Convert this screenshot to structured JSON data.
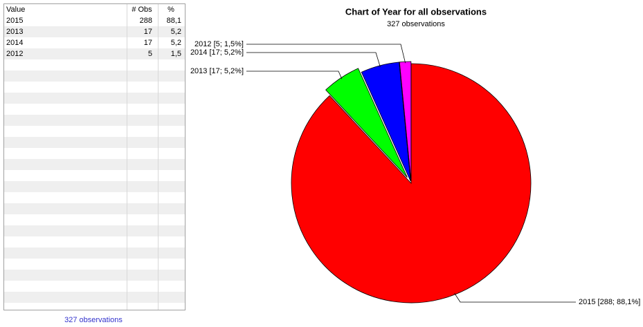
{
  "table": {
    "columns": [
      "Value",
      "# Obs",
      "%"
    ],
    "rows": [
      [
        "2015",
        "288",
        "88,1"
      ],
      [
        "2013",
        "17",
        "5,2"
      ],
      [
        "2014",
        "17",
        "5,2"
      ],
      [
        "2012",
        "5",
        "1,5"
      ]
    ],
    "footer": "327 observations"
  },
  "chart_data": {
    "type": "pie",
    "title": "Chart of Year for all observations",
    "subtitle": "327 observations",
    "categories": [
      "2015",
      "2013",
      "2014",
      "2012"
    ],
    "values": [
      288,
      17,
      17,
      5
    ],
    "value_labels": [
      "2015 [288; 88,1%]",
      "2013 [17; 5,2%]",
      "2014 [17; 5,2%]",
      "2012 [5; 1,5%]"
    ],
    "colors": [
      "#ff0000",
      "#00ff00",
      "#0000ff",
      "#ff00ff"
    ]
  }
}
